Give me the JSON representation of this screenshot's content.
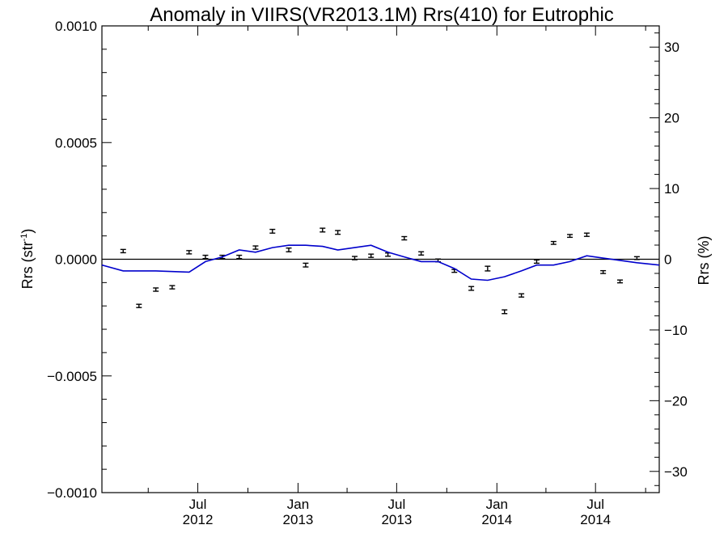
{
  "chart_data": {
    "type": "line",
    "title": "Anomaly in VIIRS(VR2013.1M) Rrs(410) for Eutrophic",
    "ylabel": "Rrs (str",
    "ylabel_sup": "-1",
    "ylabel_close": ")",
    "y2label": "Rrs (%)",
    "ylim": [
      -0.001,
      0.001
    ],
    "y2lim": [
      -33,
      33
    ],
    "yticks": [
      {
        "value": -0.001,
        "label": "−0.0010"
      },
      {
        "value": -0.0005,
        "label": "−0.0005"
      },
      {
        "value": 0.0,
        "label": "0.0000"
      },
      {
        "value": 0.0005,
        "label": "0.0005"
      },
      {
        "value": 0.001,
        "label": "0.0010"
      }
    ],
    "y2ticks": [
      {
        "value": -30,
        "label": "−30"
      },
      {
        "value": -20,
        "label": "−20"
      },
      {
        "value": -10,
        "label": "−10"
      },
      {
        "value": 0,
        "label": "0"
      },
      {
        "value": 10,
        "label": "10"
      },
      {
        "value": 20,
        "label": "20"
      },
      {
        "value": 30,
        "label": "30"
      }
    ],
    "xlim": [
      "2012-01-07",
      "2014-10-26"
    ],
    "xticks": [
      {
        "date": "2012-07-01",
        "line1": "Jul",
        "line2": "2012"
      },
      {
        "date": "2013-01-01",
        "line1": "Jan",
        "line2": "2013"
      },
      {
        "date": "2013-07-01",
        "line1": "Jul",
        "line2": "2013"
      },
      {
        "date": "2014-01-01",
        "line1": "Jan",
        "line2": "2014"
      },
      {
        "date": "2014-07-01",
        "line1": "Jul",
        "line2": "2014"
      }
    ],
    "zero_line": 0,
    "series": [
      {
        "type": "errorbar",
        "color": "#000000",
        "points": [
          {
            "x": "2012-02-15",
            "y": 3.5e-05,
            "err": 7e-06
          },
          {
            "x": "2012-03-15",
            "y": -0.0002,
            "err": 7e-06
          },
          {
            "x": "2012-04-15",
            "y": -0.00013,
            "err": 7e-06
          },
          {
            "x": "2012-05-15",
            "y": -0.00012,
            "err": 7e-06
          },
          {
            "x": "2012-06-15",
            "y": 3e-05,
            "err": 7e-06
          },
          {
            "x": "2012-07-15",
            "y": 1e-05,
            "err": 7e-06
          },
          {
            "x": "2012-08-15",
            "y": 1e-05,
            "err": 7e-06
          },
          {
            "x": "2012-09-15",
            "y": 1e-05,
            "err": 7e-06
          },
          {
            "x": "2012-10-15",
            "y": 5e-05,
            "err": 7e-06
          },
          {
            "x": "2012-11-15",
            "y": 0.00012,
            "err": 8e-06
          },
          {
            "x": "2012-12-15",
            "y": 4e-05,
            "err": 8e-06
          },
          {
            "x": "2013-01-15",
            "y": -2.5e-05,
            "err": 8e-06
          },
          {
            "x": "2013-02-15",
            "y": 0.000125,
            "err": 8e-06
          },
          {
            "x": "2013-03-15",
            "y": 0.000115,
            "err": 8e-06
          },
          {
            "x": "2013-04-15",
            "y": 5e-06,
            "err": 7e-06
          },
          {
            "x": "2013-05-15",
            "y": 1.5e-05,
            "err": 7e-06
          },
          {
            "x": "2013-06-15",
            "y": 2e-05,
            "err": 7e-06
          },
          {
            "x": "2013-07-15",
            "y": 9e-05,
            "err": 7e-06
          },
          {
            "x": "2013-08-15",
            "y": 2.5e-05,
            "err": 7e-06
          },
          {
            "x": "2013-09-15",
            "y": -5e-06,
            "err": 6e-06
          },
          {
            "x": "2013-10-15",
            "y": -5e-05,
            "err": 6e-06
          },
          {
            "x": "2013-11-15",
            "y": -0.000125,
            "err": 8e-06
          },
          {
            "x": "2013-12-15",
            "y": -4e-05,
            "err": 1e-05
          },
          {
            "x": "2014-01-15",
            "y": -0.000225,
            "err": 8e-06
          },
          {
            "x": "2014-02-15",
            "y": -0.000155,
            "err": 7e-06
          },
          {
            "x": "2014-03-15",
            "y": -1e-05,
            "err": 7e-06
          },
          {
            "x": "2014-04-15",
            "y": 7e-05,
            "err": 6e-06
          },
          {
            "x": "2014-05-15",
            "y": 0.0001,
            "err": 6e-06
          },
          {
            "x": "2014-06-15",
            "y": 0.000105,
            "err": 7e-06
          },
          {
            "x": "2014-07-15",
            "y": -5.5e-05,
            "err": 6e-06
          },
          {
            "x": "2014-08-15",
            "y": -9.5e-05,
            "err": 6e-06
          },
          {
            "x": "2014-09-15",
            "y": 5e-06,
            "err": 6e-06
          }
        ]
      },
      {
        "type": "line",
        "color": "#0000cc",
        "points": [
          {
            "x": "2012-01-07",
            "y": -2.5e-05
          },
          {
            "x": "2012-02-15",
            "y": -5e-05
          },
          {
            "x": "2012-04-15",
            "y": -5e-05
          },
          {
            "x": "2012-06-15",
            "y": -5.5e-05
          },
          {
            "x": "2012-07-15",
            "y": -1e-05
          },
          {
            "x": "2012-08-15",
            "y": 1e-05
          },
          {
            "x": "2012-09-15",
            "y": 4e-05
          },
          {
            "x": "2012-10-15",
            "y": 3e-05
          },
          {
            "x": "2012-11-15",
            "y": 5e-05
          },
          {
            "x": "2012-12-15",
            "y": 6e-05
          },
          {
            "x": "2013-01-15",
            "y": 6e-05
          },
          {
            "x": "2013-02-15",
            "y": 5.5e-05
          },
          {
            "x": "2013-03-15",
            "y": 4e-05
          },
          {
            "x": "2013-04-15",
            "y": 5e-05
          },
          {
            "x": "2013-05-15",
            "y": 6e-05
          },
          {
            "x": "2013-06-15",
            "y": 3e-05
          },
          {
            "x": "2013-07-15",
            "y": 1e-05
          },
          {
            "x": "2013-08-15",
            "y": -1e-05
          },
          {
            "x": "2013-09-15",
            "y": -1e-05
          },
          {
            "x": "2013-10-15",
            "y": -4e-05
          },
          {
            "x": "2013-11-15",
            "y": -8.5e-05
          },
          {
            "x": "2013-12-15",
            "y": -9e-05
          },
          {
            "x": "2014-01-15",
            "y": -7.5e-05
          },
          {
            "x": "2014-02-15",
            "y": -5e-05
          },
          {
            "x": "2014-03-15",
            "y": -2.5e-05
          },
          {
            "x": "2014-04-15",
            "y": -2.5e-05
          },
          {
            "x": "2014-05-15",
            "y": -1e-05
          },
          {
            "x": "2014-06-15",
            "y": 1.5e-05
          },
          {
            "x": "2014-07-15",
            "y": 5e-06
          },
          {
            "x": "2014-08-15",
            "y": -5e-06
          },
          {
            "x": "2014-09-15",
            "y": -1.5e-05
          },
          {
            "x": "2014-10-26",
            "y": -2.5e-05
          }
        ]
      }
    ]
  }
}
